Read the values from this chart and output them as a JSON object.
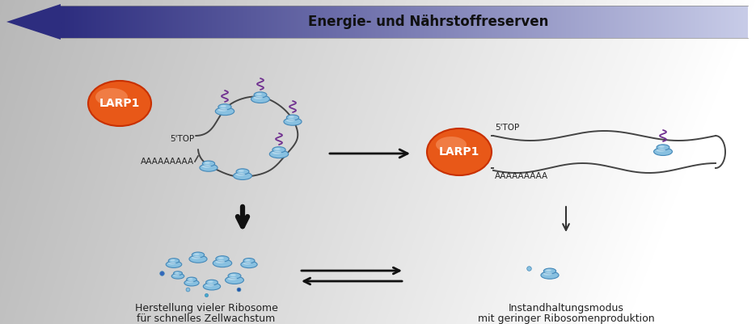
{
  "arrow_label": "Energie- und Nährstoffreserven",
  "larp1_label": "LARP1",
  "label_5top_left": "5'TOP",
  "label_aaaa_left": "AAAAAAAAA",
  "label_5top_right": "5'TOP",
  "label_aaaa_right": "AAAAAAAAA",
  "label_left_bottom1": "Herstellung vieler Ribosome",
  "label_left_bottom2": "für schnelles Zellwachstum",
  "label_right_bottom1": "Instandhaltungsmodus",
  "label_right_bottom2": "mit geringer Ribosomenproduktion",
  "arrow_blue_dark": "#2d2d7f",
  "arrow_blue_mid": "#5555aa",
  "arrow_blue_light": "#c8cce8",
  "larp1_orange_dark": "#c83000",
  "larp1_orange": "#e85818",
  "larp1_orange_light": "#f07030",
  "ribosome_blue": "#88c0e0",
  "ribosome_fill": "#b0d8f0",
  "ribosome_edge": "#4488b8",
  "ribosome_highlight": "#d8eef8",
  "purple": "#703090",
  "mrna_color": "#444444",
  "text_color": "#222222",
  "arrow_body_color": "#333333"
}
